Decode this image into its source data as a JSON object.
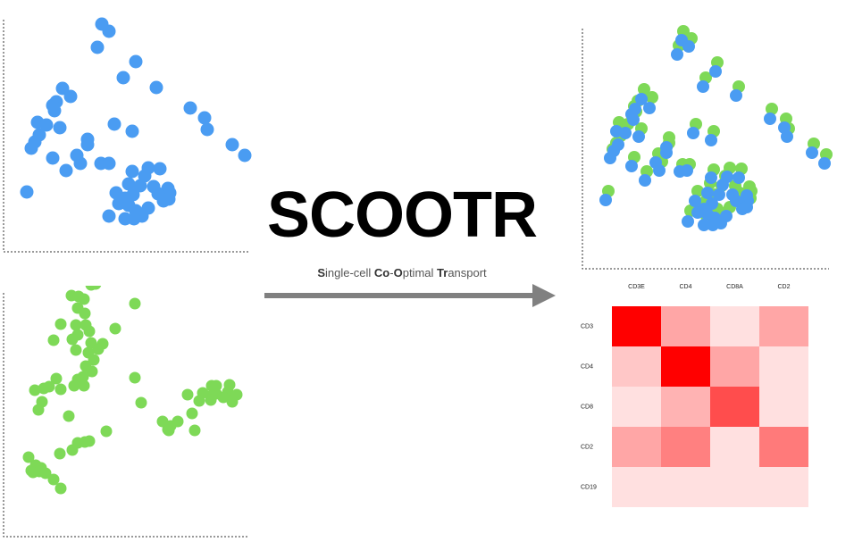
{
  "title": "SCOOTR",
  "subtitle_parts": [
    {
      "text": "S",
      "bold": true
    },
    {
      "text": "ingle-cell ",
      "bold": false
    },
    {
      "text": "Co",
      "bold": true
    },
    {
      "text": "-",
      "bold": false
    },
    {
      "text": "O",
      "bold": true
    },
    {
      "text": "ptimal ",
      "bold": false
    },
    {
      "text": "Tr",
      "bold": true
    },
    {
      "text": "ansport",
      "bold": false
    }
  ],
  "colors": {
    "domain1": "#4a9cf2",
    "domain2": "#7ed957",
    "arrow": "#808080",
    "heat_max": "#ff0000"
  },
  "chart_data": [
    {
      "type": "scatter",
      "title": "",
      "grid": false,
      "xlim": [
        0,
        280
      ],
      "ylim": [
        0,
        270
      ],
      "series": [
        {
          "color": "#4a9cf2",
          "points": [
            [
              110,
              255
            ],
            [
              118,
              247
            ],
            [
              105,
              229
            ],
            [
              148,
              213
            ],
            [
              134,
              195
            ],
            [
              171,
              184
            ],
            [
              209,
              161
            ],
            [
              225,
              150
            ],
            [
              228,
              137
            ],
            [
              256,
              120
            ],
            [
              270,
              108
            ],
            [
              66,
              183
            ],
            [
              75,
              174
            ],
            [
              59,
              168
            ],
            [
              55,
              164
            ],
            [
              57,
              158
            ],
            [
              38,
              145
            ],
            [
              48,
              142
            ],
            [
              63,
              139
            ],
            [
              40,
              131
            ],
            [
              35,
              123
            ],
            [
              31,
              116
            ],
            [
              94,
              126
            ],
            [
              94,
              120
            ],
            [
              124,
              143
            ],
            [
              144,
              135
            ],
            [
              55,
              105
            ],
            [
              82,
              108
            ],
            [
              86,
              99
            ],
            [
              109,
              99
            ],
            [
              118,
              99
            ],
            [
              70,
              91
            ],
            [
              144,
              90
            ],
            [
              158,
              85
            ],
            [
              162,
              94
            ],
            [
              175,
              93
            ],
            [
              140,
              76
            ],
            [
              153,
              74
            ],
            [
              168,
              73
            ],
            [
              184,
              71
            ],
            [
              186,
              66
            ],
            [
              173,
              65
            ],
            [
              145,
              64
            ],
            [
              136,
              60
            ],
            [
              126,
              66
            ],
            [
              129,
              54
            ],
            [
              140,
              52
            ],
            [
              148,
              46
            ],
            [
              162,
              49
            ],
            [
              179,
              57
            ],
            [
              185,
              59
            ],
            [
              155,
              40
            ],
            [
              146,
              37
            ],
            [
              136,
              37
            ],
            [
              118,
              40
            ],
            [
              26,
              67
            ]
          ]
        }
      ]
    },
    {
      "type": "scatter",
      "title": "",
      "grid": false,
      "xlim": [
        0,
        280
      ],
      "ylim": [
        0,
        270
      ],
      "series": [
        {
          "color": "#7ed957",
          "points": [
            [
              98,
              271
            ],
            [
              103,
              272
            ],
            [
              76,
              259
            ],
            [
              84,
              258
            ],
            [
              90,
              255
            ],
            [
              147,
              250
            ],
            [
              83,
              245
            ],
            [
              91,
              239
            ],
            [
              64,
              227
            ],
            [
              81,
              226
            ],
            [
              92,
              226
            ],
            [
              96,
              219
            ],
            [
              83,
              215
            ],
            [
              125,
              222
            ],
            [
              56,
              209
            ],
            [
              77,
              210
            ],
            [
              98,
              206
            ],
            [
              111,
              205
            ],
            [
              106,
              199
            ],
            [
              81,
              198
            ],
            [
              95,
              195
            ],
            [
              101,
              187
            ],
            [
              92,
              180
            ],
            [
              99,
              174
            ],
            [
              89,
              168
            ],
            [
              83,
              165
            ],
            [
              147,
              167
            ],
            [
              59,
              166
            ],
            [
              79,
              158
            ],
            [
              90,
              158
            ],
            [
              35,
              153
            ],
            [
              45,
              155
            ],
            [
              51,
              157
            ],
            [
              64,
              154
            ],
            [
              233,
              158
            ],
            [
              238,
              158
            ],
            [
              253,
              159
            ],
            [
              251,
              151
            ],
            [
              238,
              149
            ],
            [
              261,
              148
            ],
            [
              233,
              147
            ],
            [
              223,
              150
            ],
            [
              206,
              148
            ],
            [
              246,
              145
            ],
            [
              219,
              141
            ],
            [
              232,
              142
            ],
            [
              256,
              140
            ],
            [
              154,
              139
            ],
            [
              43,
              140
            ],
            [
              39,
              131
            ],
            [
              73,
              124
            ],
            [
              211,
              127
            ],
            [
              195,
              118
            ],
            [
              178,
              118
            ],
            [
              184,
              109
            ],
            [
              187,
              113
            ],
            [
              185,
              108
            ],
            [
              214,
              108
            ],
            [
              115,
              107
            ],
            [
              83,
              94
            ],
            [
              91,
              95
            ],
            [
              96,
              96
            ],
            [
              77,
              86
            ],
            [
              63,
              82
            ],
            [
              28,
              78
            ],
            [
              36,
              69
            ],
            [
              42,
              66
            ],
            [
              31,
              63
            ],
            [
              33,
              61
            ],
            [
              40,
              62
            ],
            [
              47,
              60
            ],
            [
              56,
              53
            ],
            [
              64,
              43
            ]
          ]
        }
      ]
    },
    {
      "type": "scatter",
      "title": "",
      "grid": false,
      "xlim": [
        0,
        280
      ],
      "ylim": [
        0,
        270
      ],
      "series": [
        {
          "name": "green",
          "color": "#7ed957",
          "points": [
            [
              111,
              265
            ],
            [
              120,
              257
            ],
            [
              106,
              249
            ],
            [
              149,
              230
            ],
            [
              136,
              213
            ],
            [
              173,
              203
            ],
            [
              210,
              178
            ],
            [
              226,
              167
            ],
            [
              229,
              156
            ],
            [
              257,
              139
            ],
            [
              271,
              127
            ],
            [
              67,
              200
            ],
            [
              76,
              191
            ],
            [
              60,
              187
            ],
            [
              56,
              181
            ],
            [
              58,
              175
            ],
            [
              39,
              163
            ],
            [
              49,
              161
            ],
            [
              64,
              156
            ],
            [
              41,
              148
            ],
            [
              36,
              140
            ],
            [
              32,
              133
            ],
            [
              95,
              146
            ],
            [
              95,
              140
            ],
            [
              125,
              161
            ],
            [
              145,
              153
            ],
            [
              56,
              124
            ],
            [
              83,
              128
            ],
            [
              87,
              119
            ],
            [
              110,
              116
            ],
            [
              118,
              116
            ],
            [
              70,
              108
            ],
            [
              145,
              110
            ],
            [
              158,
              103
            ],
            [
              163,
              112
            ],
            [
              176,
              111
            ],
            [
              141,
              95
            ],
            [
              154,
              92
            ],
            [
              169,
              92
            ],
            [
              185,
              91
            ],
            [
              187,
              86
            ],
            [
              174,
              84
            ],
            [
              146,
              82
            ],
            [
              137,
              76
            ],
            [
              127,
              86
            ],
            [
              130,
              72
            ],
            [
              141,
              70
            ],
            [
              149,
              66
            ],
            [
              163,
              68
            ],
            [
              180,
              76
            ],
            [
              186,
              78
            ],
            [
              156,
              61
            ],
            [
              147,
              58
            ],
            [
              137,
              58
            ],
            [
              119,
              64
            ],
            [
              27,
              86
            ]
          ]
        },
        {
          "name": "blue",
          "color": "#4a9cf2",
          "points": [
            [
              109,
              255
            ],
            [
              117,
              248
            ],
            [
              104,
              239
            ],
            [
              147,
              220
            ],
            [
              133,
              203
            ],
            [
              170,
              193
            ],
            [
              208,
              167
            ],
            [
              224,
              157
            ],
            [
              227,
              147
            ],
            [
              255,
              129
            ],
            [
              269,
              117
            ],
            [
              64,
              189
            ],
            [
              73,
              179
            ],
            [
              57,
              178
            ],
            [
              53,
              172
            ],
            [
              55,
              166
            ],
            [
              36,
              153
            ],
            [
              46,
              151
            ],
            [
              61,
              147
            ],
            [
              38,
              138
            ],
            [
              33,
              131
            ],
            [
              29,
              123
            ],
            [
              92,
              135
            ],
            [
              92,
              129
            ],
            [
              122,
              151
            ],
            [
              142,
              143
            ],
            [
              53,
              114
            ],
            [
              80,
              118
            ],
            [
              84,
              109
            ],
            [
              107,
              108
            ],
            [
              115,
              109
            ],
            [
              68,
              98
            ],
            [
              142,
              101
            ],
            [
              155,
              93
            ],
            [
              160,
              102
            ],
            [
              173,
              101
            ],
            [
              138,
              84
            ],
            [
              151,
              82
            ],
            [
              166,
              82
            ],
            [
              182,
              81
            ],
            [
              183,
              75
            ],
            [
              170,
              75
            ],
            [
              143,
              72
            ],
            [
              134,
              66
            ],
            [
              124,
              75
            ],
            [
              127,
              62
            ],
            [
              138,
              60
            ],
            [
              146,
              56
            ],
            [
              159,
              58
            ],
            [
              177,
              66
            ],
            [
              182,
              68
            ],
            [
              153,
              50
            ],
            [
              144,
              48
            ],
            [
              134,
              48
            ],
            [
              116,
              52
            ],
            [
              24,
              76
            ]
          ]
        }
      ]
    },
    {
      "type": "heatmap",
      "title": "",
      "columns": [
        "CD3E",
        "CD4",
        "CD8A",
        "CD2"
      ],
      "rows": [
        "CD3",
        "CD4",
        "CD8",
        "CD2",
        "CD19"
      ],
      "values": [
        [
          1.0,
          0.35,
          0.12,
          0.35
        ],
        [
          0.22,
          1.0,
          0.35,
          0.12
        ],
        [
          0.12,
          0.3,
          0.7,
          0.12
        ],
        [
          0.35,
          0.5,
          0.12,
          0.52
        ],
        [
          0.12,
          0.12,
          0.12,
          0.12
        ]
      ]
    }
  ]
}
